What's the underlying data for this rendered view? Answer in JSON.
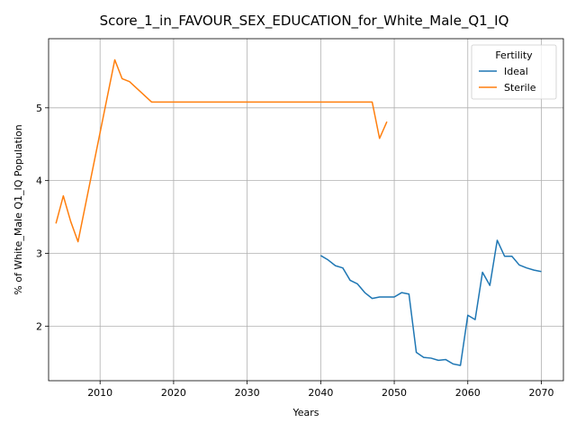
{
  "chart_data": {
    "type": "line",
    "title": "Score_1_in_FAVOUR_SEX_EDUCATION_for_White_Male_Q1_IQ",
    "xlabel": "Years",
    "ylabel": "% of White_Male Q1_IQ Population",
    "xlim": [
      2003,
      2073
    ],
    "ylim": [
      1.25,
      5.95
    ],
    "xticks": [
      2010,
      2020,
      2030,
      2040,
      2050,
      2060,
      2070
    ],
    "yticks": [
      2,
      3,
      4,
      5
    ],
    "grid": true,
    "legend": {
      "title": "Fertility",
      "placement": "top-right"
    },
    "series": [
      {
        "name": "Ideal",
        "color": "#1f77b4",
        "x": [
          2040,
          2041,
          2042,
          2043,
          2044,
          2045,
          2046,
          2047,
          2048,
          2049,
          2050,
          2051,
          2052,
          2053,
          2054,
          2055,
          2056,
          2057,
          2058,
          2059,
          2060,
          2061,
          2062,
          2063,
          2064,
          2065,
          2066,
          2067,
          2068,
          2069,
          2070
        ],
        "y": [
          2.97,
          2.91,
          2.83,
          2.8,
          2.63,
          2.58,
          2.46,
          2.38,
          2.4,
          2.4,
          2.4,
          2.46,
          2.44,
          1.64,
          1.57,
          1.56,
          1.53,
          1.54,
          1.48,
          1.46,
          2.15,
          2.09,
          2.74,
          2.56,
          3.18,
          2.96,
          2.96,
          2.84,
          2.8,
          2.77,
          2.75
        ]
      },
      {
        "name": "Sterile",
        "color": "#ff7f0e",
        "x": [
          2004,
          2005,
          2006,
          2007,
          2010,
          2012,
          2013,
          2014,
          2017,
          2020,
          2025,
          2030,
          2035,
          2040,
          2045,
          2047,
          2048,
          2049
        ],
        "y": [
          3.41,
          3.79,
          3.44,
          3.16,
          4.66,
          5.66,
          5.4,
          5.36,
          5.08,
          5.08,
          5.08,
          5.08,
          5.08,
          5.08,
          5.08,
          5.08,
          4.58,
          4.81
        ]
      }
    ]
  }
}
